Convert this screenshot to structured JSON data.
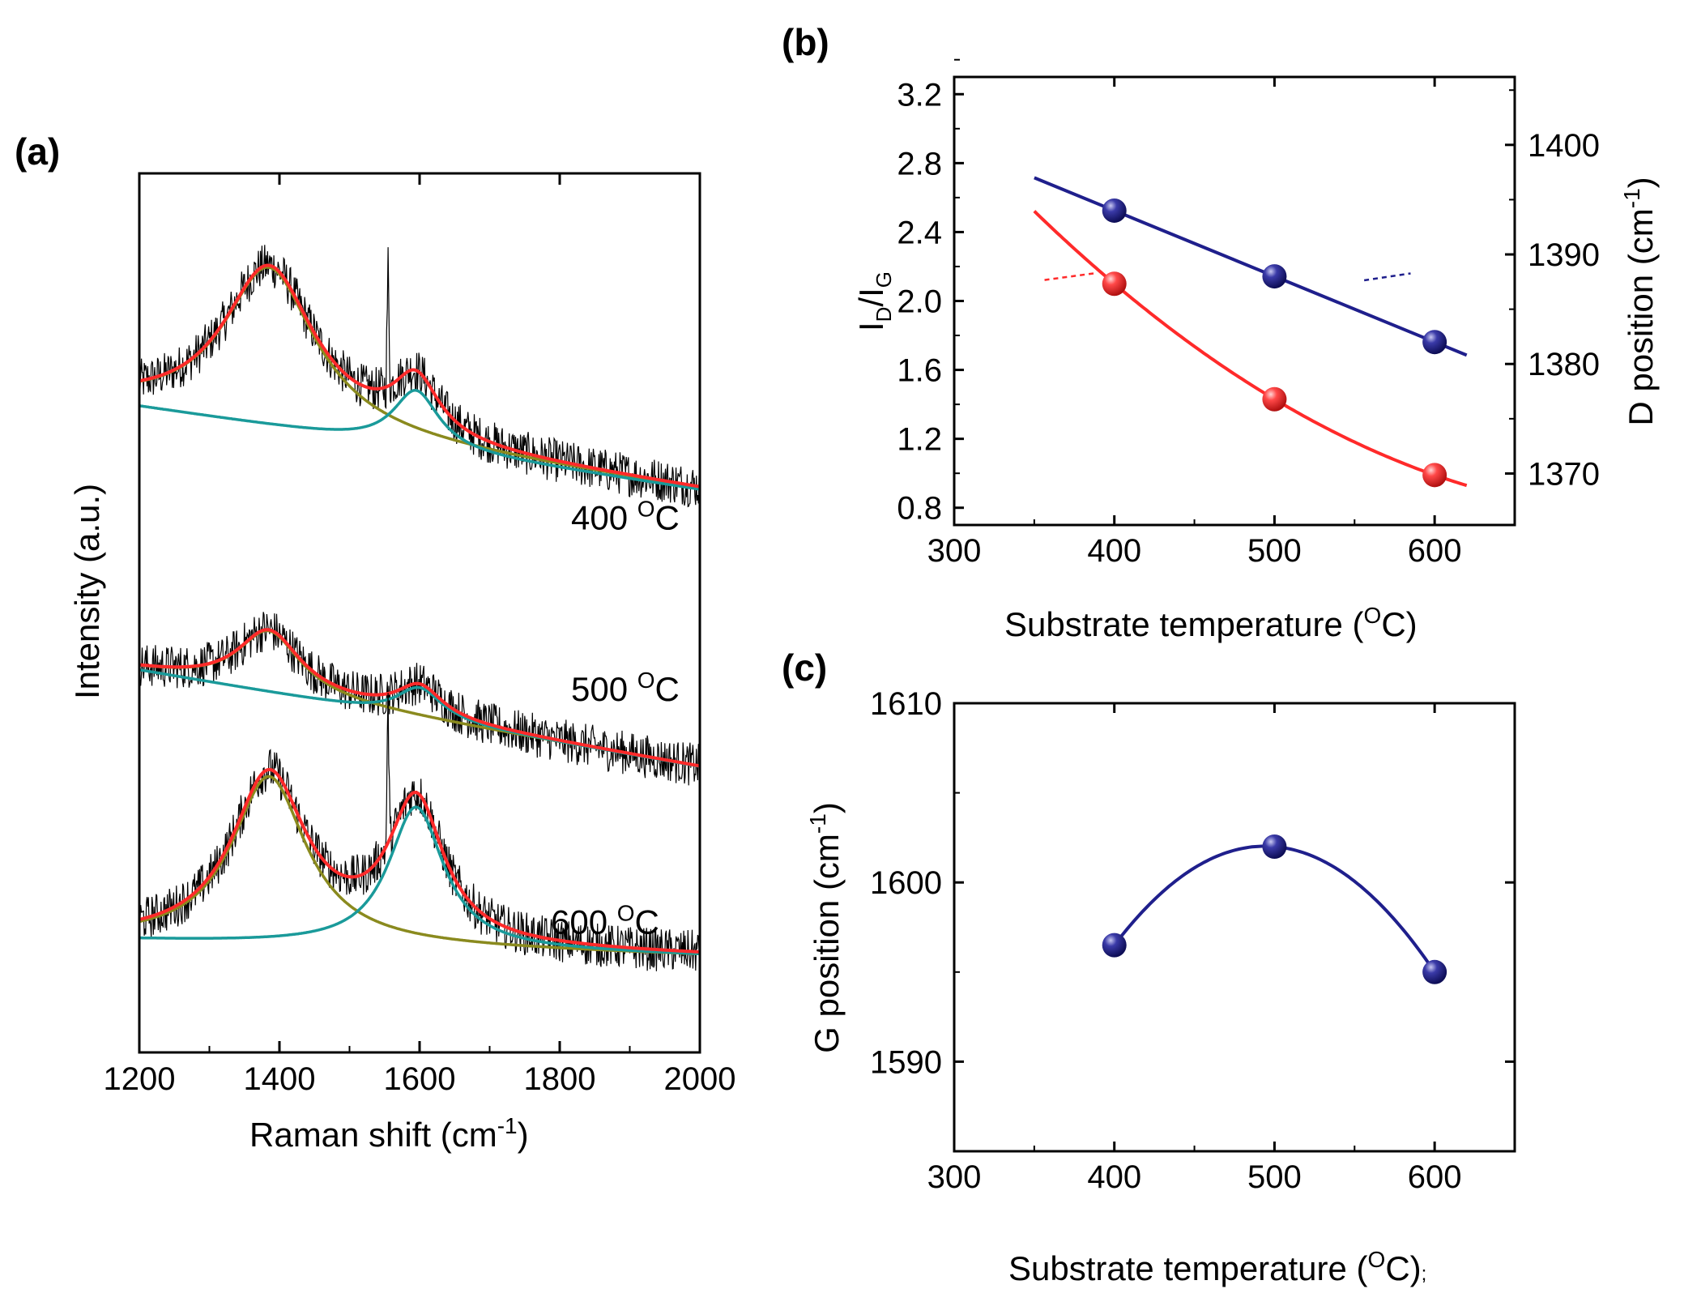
{
  "colors": {
    "noise": "#000000",
    "fit": "#ff2a2a",
    "d_band": "#8a8a1e",
    "g_band": "#1a9a9a",
    "navy": "#1f1f8c",
    "red": "#ff2a2a"
  },
  "chart_data": [
    {
      "panel": "(a)",
      "type": "line",
      "xlabel": "Raman shift (cm",
      "xlabel_sup": "-1",
      "xlabel_end": ")",
      "ylabel": "Intensity (a.u.)",
      "xlim": [
        1200,
        2000
      ],
      "ylim": [
        0,
        1
      ],
      "xticks": [
        "1200",
        "1400",
        "1600",
        "1800",
        "2000"
      ],
      "series": [
        {
          "name": "400 °C",
          "label_main": "400 ",
          "label_sup": "O",
          "label_unit": "C",
          "offset": 0.64,
          "D_amp": 0.18,
          "D_center": 1385,
          "D_width": 80,
          "G_amp": 0.065,
          "G_center": 1595,
          "G_width": 40,
          "bg_start": 0.095,
          "bg_end": 0.0,
          "sharp_peak": 1555,
          "sharp_height": 0.14
        },
        {
          "name": "500 °C",
          "label_main": "500 ",
          "label_sup": "O",
          "label_unit": "C",
          "offset": 0.39,
          "D_amp": 0.07,
          "D_center": 1385,
          "D_width": 55,
          "G_amp": 0.035,
          "G_center": 1600,
          "G_width": 40,
          "bg_start": 0.045,
          "bg_end": -0.065,
          "sharp_peak": 1555,
          "sharp_height": 0.0
        },
        {
          "name": "600 °C",
          "label_main": "600 ",
          "label_sup": "O",
          "label_unit": "C",
          "offset": 0.11,
          "D_amp": 0.19,
          "D_center": 1385,
          "D_width": 65,
          "G_amp": 0.16,
          "G_center": 1595,
          "G_width": 48,
          "bg_start": 0.018,
          "bg_end": 0.0,
          "sharp_peak": 1555,
          "sharp_height": 0.16
        }
      ]
    },
    {
      "panel": "(b)",
      "type": "scatter",
      "xlabel": "Substrate temperature (",
      "xlabel_sup": "O",
      "xlabel_end": "C)",
      "ylabel_left_main": "I",
      "ylabel_left_sub1": "D",
      "ylabel_left_mid": "/I",
      "ylabel_left_sub2": "G",
      "ylabel_right": "D position (cm",
      "ylabel_right_sup": "-1",
      "ylabel_right_end": ")",
      "xlim": [
        300,
        650
      ],
      "ylim_left": [
        0.7,
        3.3
      ],
      "ylim_right": [
        1365.3,
        1406.2
      ],
      "xticks": [
        "300",
        "400",
        "500",
        "600"
      ],
      "yticks_left": [
        "0.8",
        "1.2",
        "1.6",
        "2.0",
        "2.4",
        "2.8",
        "3.2"
      ],
      "yticks_right": [
        "1370",
        "1380",
        "1390",
        "1400"
      ],
      "series": [
        {
          "name": "ID/IG",
          "axis": "left",
          "color": "red",
          "x": [
            400,
            500,
            600
          ],
          "y": [
            2.1,
            1.43,
            0.99
          ]
        },
        {
          "name": "D position",
          "axis": "right",
          "color": "navy",
          "x": [
            400,
            500,
            600
          ],
          "y": [
            1394,
            1388,
            1382
          ]
        }
      ]
    },
    {
      "panel": "(c)",
      "type": "scatter",
      "xlabel": "Substrate temperature (",
      "xlabel_sup": "O",
      "xlabel_end": "C)",
      "xlabel_tail": ";",
      "ylabel": "G position (cm",
      "ylabel_sup": "-1",
      "ylabel_end": ")",
      "xlim": [
        300,
        650
      ],
      "ylim": [
        1585,
        1610
      ],
      "xticks": [
        "300",
        "400",
        "500",
        "600"
      ],
      "yticks": [
        "1590",
        "1600",
        "1610"
      ],
      "series": [
        {
          "name": "G position",
          "color": "navy",
          "x": [
            400,
            500,
            600
          ],
          "y": [
            1596.5,
            1602,
            1595
          ]
        }
      ]
    }
  ]
}
